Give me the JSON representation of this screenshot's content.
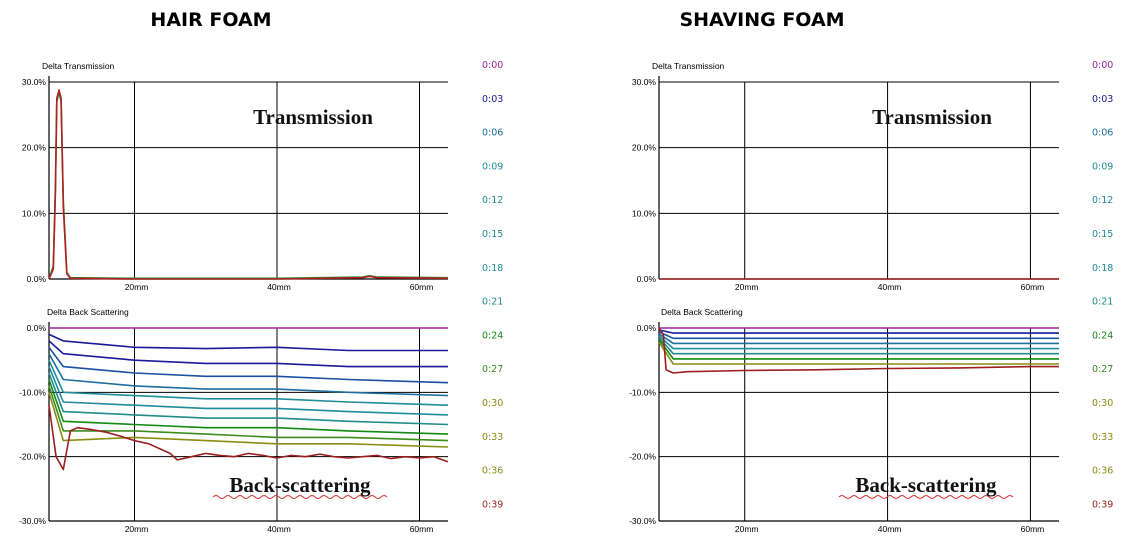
{
  "titles": {
    "left": "HAIR FOAM",
    "right": "SHAVING FOAM"
  },
  "labels": {
    "transmission_sub": "Delta Transmission",
    "backscatter_sub": "Delta Back Scattering",
    "transmission_big": "Transmission",
    "backscatter_big": "Back-scattering"
  },
  "legend": [
    {
      "label": "0:00",
      "color": "#a020a0"
    },
    {
      "label": "0:03",
      "color": "#1a1a9a"
    },
    {
      "label": "0:06",
      "color": "#1e6e9e"
    },
    {
      "label": "0:09",
      "color": "#1e8c9a"
    },
    {
      "label": "0:12",
      "color": "#1e8c9a"
    },
    {
      "label": "0:15",
      "color": "#1e8c9a"
    },
    {
      "label": "0:18",
      "color": "#1e8c9a"
    },
    {
      "label": "0:21",
      "color": "#1e8c8a"
    },
    {
      "label": "0:24",
      "color": "#128a12"
    },
    {
      "label": "0:27",
      "color": "#3c8c1e"
    },
    {
      "label": "0:30",
      "color": "#8c8c14"
    },
    {
      "label": "0:33",
      "color": "#8c8c14"
    },
    {
      "label": "0:36",
      "color": "#8c8c14"
    },
    {
      "label": "0:39",
      "color": "#9c1e1e"
    }
  ],
  "chart_data": [
    {
      "type": "line",
      "panel": "HAIR FOAM",
      "subtitle": "Delta Transmission",
      "annotation": "Transmission",
      "xlim": [
        8,
        64
      ],
      "ylim": [
        0,
        30
      ],
      "xticks": [
        {
          "v": 20,
          "label": "20mm"
        },
        {
          "v": 40,
          "label": "40mm"
        },
        {
          "v": 60,
          "label": "60mm"
        }
      ],
      "yticks": [
        {
          "v": 0,
          "label": "0.0%"
        },
        {
          "v": 10,
          "label": "10.0%"
        },
        {
          "v": 20,
          "label": "20.0%"
        },
        {
          "v": 30,
          "label": "30.0%"
        }
      ],
      "series": [
        {
          "color": "#2a8a2a",
          "x": [
            8,
            8.6,
            8.9,
            9.1,
            9.4,
            9.7,
            10,
            10.5,
            11,
            20,
            40,
            52,
            53,
            54,
            64
          ],
          "y": [
            0,
            2,
            14,
            27,
            28.5,
            27,
            12,
            1,
            0.2,
            0.1,
            0.1,
            0.3,
            0.5,
            0.3,
            0.2
          ]
        },
        {
          "color": "#b02020",
          "x": [
            8,
            8.6,
            8.9,
            9.1,
            9.4,
            9.7,
            10,
            10.5,
            11,
            20,
            40,
            52,
            53,
            54,
            64
          ],
          "y": [
            0,
            1.5,
            13,
            27.5,
            28.8,
            27.5,
            11,
            0.8,
            0.1,
            0,
            0,
            0.2,
            0.4,
            0.2,
            0.1
          ]
        }
      ]
    },
    {
      "type": "line",
      "panel": "HAIR FOAM",
      "subtitle": "Delta Back Scattering",
      "annotation": "Back-scattering",
      "xlim": [
        8,
        64
      ],
      "ylim": [
        -30,
        0
      ],
      "xticks": [
        {
          "v": 20,
          "label": "20mm"
        },
        {
          "v": 40,
          "label": "40mm"
        },
        {
          "v": 60,
          "label": "60mm"
        }
      ],
      "yticks": [
        {
          "v": 0,
          "label": "0.0%"
        },
        {
          "v": -10,
          "label": "-10.0%"
        },
        {
          "v": -20,
          "label": "-20.0%"
        },
        {
          "v": -30,
          "label": "-30.0%"
        }
      ],
      "series": [
        {
          "color": "#a020a0",
          "x": [
            8,
            64
          ],
          "y": [
            0,
            0
          ]
        },
        {
          "color": "#1a1a9a",
          "x": [
            8,
            10,
            20,
            30,
            40,
            50,
            64
          ],
          "y": [
            -1,
            -2,
            -3,
            -3.2,
            -3,
            -3.5,
            -3.5
          ]
        },
        {
          "color": "#1a1a9a",
          "x": [
            8,
            10,
            20,
            30,
            40,
            50,
            64
          ],
          "y": [
            -2,
            -4,
            -5,
            -5.5,
            -5.5,
            -6,
            -6
          ]
        },
        {
          "color": "#1a50a0",
          "x": [
            8,
            10,
            20,
            30,
            40,
            50,
            64
          ],
          "y": [
            -3,
            -6,
            -7,
            -7.5,
            -7.5,
            -8,
            -8.5
          ]
        },
        {
          "color": "#1e6e9e",
          "x": [
            8,
            10,
            20,
            30,
            40,
            50,
            64
          ],
          "y": [
            -4,
            -8,
            -9,
            -9.5,
            -9.5,
            -10,
            -10.5
          ]
        },
        {
          "color": "#1e8c9a",
          "x": [
            8,
            10,
            20,
            30,
            40,
            50,
            64
          ],
          "y": [
            -5,
            -10,
            -10.5,
            -11,
            -11,
            -11.5,
            -12
          ]
        },
        {
          "color": "#1e8c9a",
          "x": [
            8,
            10,
            20,
            30,
            40,
            50,
            64
          ],
          "y": [
            -6,
            -11.5,
            -12,
            -12.5,
            -12.5,
            -13,
            -13.5
          ]
        },
        {
          "color": "#1e8c8a",
          "x": [
            8,
            10,
            20,
            30,
            40,
            50,
            64
          ],
          "y": [
            -7,
            -13,
            -13.5,
            -14,
            -14,
            -14.5,
            -15
          ]
        },
        {
          "color": "#128a12",
          "x": [
            8,
            10,
            20,
            30,
            40,
            50,
            64
          ],
          "y": [
            -8,
            -14.5,
            -15,
            -15.5,
            -15.5,
            -16,
            -16.5
          ]
        },
        {
          "color": "#3c8c1e",
          "x": [
            8,
            10,
            20,
            30,
            40,
            50,
            64
          ],
          "y": [
            -9,
            -16,
            -16,
            -16.5,
            -17,
            -17,
            -17.5
          ]
        },
        {
          "color": "#8c8c14",
          "x": [
            8,
            10,
            20,
            30,
            40,
            50,
            64
          ],
          "y": [
            -10,
            -17.5,
            -17,
            -17.5,
            -18,
            -18,
            -18.5
          ]
        },
        {
          "color": "#9c1e1e",
          "x": [
            8,
            9,
            10,
            11,
            12,
            14,
            16,
            18,
            20,
            22,
            25,
            26,
            28,
            30,
            32,
            34,
            36,
            38,
            40,
            42,
            44,
            46,
            48,
            50,
            52,
            54,
            56,
            58,
            60,
            62,
            64
          ],
          "y": [
            -12,
            -20,
            -22,
            -16,
            -15.5,
            -15.8,
            -16.2,
            -16.8,
            -17.5,
            -18,
            -19.5,
            -20.5,
            -20,
            -19.5,
            -19.8,
            -20,
            -19.5,
            -19.8,
            -20.2,
            -19.8,
            -20,
            -19.6,
            -20,
            -20.2,
            -20,
            -19.8,
            -20.3,
            -20,
            -20.2,
            -20,
            -20.8
          ]
        }
      ]
    },
    {
      "type": "line",
      "panel": "SHAVING FOAM",
      "subtitle": "Delta Transmission",
      "annotation": "Transmission",
      "xlim": [
        8,
        64
      ],
      "ylim": [
        0,
        30
      ],
      "xticks": [
        {
          "v": 20,
          "label": "20mm"
        },
        {
          "v": 40,
          "label": "40mm"
        },
        {
          "v": 60,
          "label": "60mm"
        }
      ],
      "yticks": [
        {
          "v": 0,
          "label": "0.0%"
        },
        {
          "v": 10,
          "label": "10.0%"
        },
        {
          "v": 20,
          "label": "20.0%"
        },
        {
          "v": 30,
          "label": "30.0%"
        }
      ],
      "series": [
        {
          "color": "#9c1e1e",
          "x": [
            8,
            64
          ],
          "y": [
            0,
            0
          ]
        }
      ]
    },
    {
      "type": "line",
      "panel": "SHAVING FOAM",
      "subtitle": "Delta Back Scattering",
      "annotation": "Back-scattering",
      "xlim": [
        8,
        64
      ],
      "ylim": [
        -30,
        0
      ],
      "xticks": [
        {
          "v": 20,
          "label": "20mm"
        },
        {
          "v": 40,
          "label": "40mm"
        },
        {
          "v": 60,
          "label": "60mm"
        }
      ],
      "yticks": [
        {
          "v": 0,
          "label": "0.0%"
        },
        {
          "v": -10,
          "label": "-10.0%"
        },
        {
          "v": -20,
          "label": "-20.0%"
        },
        {
          "v": -30,
          "label": "-30.0%"
        }
      ],
      "series": [
        {
          "color": "#a020a0",
          "x": [
            8,
            64
          ],
          "y": [
            0,
            0
          ]
        },
        {
          "color": "#1a1a9a",
          "x": [
            8,
            10,
            30,
            64
          ],
          "y": [
            -0.3,
            -0.8,
            -0.8,
            -0.8
          ]
        },
        {
          "color": "#1a50a0",
          "x": [
            8,
            10,
            30,
            64
          ],
          "y": [
            -0.6,
            -1.6,
            -1.6,
            -1.6
          ]
        },
        {
          "color": "#1e6e9e",
          "x": [
            8,
            10,
            30,
            64
          ],
          "y": [
            -0.9,
            -2.4,
            -2.4,
            -2.4
          ]
        },
        {
          "color": "#1e8c9a",
          "x": [
            8,
            10,
            30,
            64
          ],
          "y": [
            -1.2,
            -3.2,
            -3.2,
            -3.2
          ]
        },
        {
          "color": "#1e8c8a",
          "x": [
            8,
            10,
            30,
            64
          ],
          "y": [
            -1.5,
            -4,
            -4,
            -4
          ]
        },
        {
          "color": "#128a12",
          "x": [
            8,
            10,
            30,
            64
          ],
          "y": [
            -1.8,
            -4.8,
            -4.8,
            -4.8
          ]
        },
        {
          "color": "#8c8c14",
          "x": [
            8,
            10,
            30,
            64
          ],
          "y": [
            -2.2,
            -5.6,
            -5.6,
            -5.6
          ]
        },
        {
          "color": "#9c1e1e",
          "x": [
            8,
            8.6,
            9,
            10,
            12,
            20,
            30,
            40,
            50,
            60,
            64
          ],
          "y": [
            0,
            -1,
            -6.5,
            -7,
            -6.8,
            -6.6,
            -6.5,
            -6.3,
            -6.2,
            -6,
            -6
          ]
        }
      ]
    }
  ]
}
